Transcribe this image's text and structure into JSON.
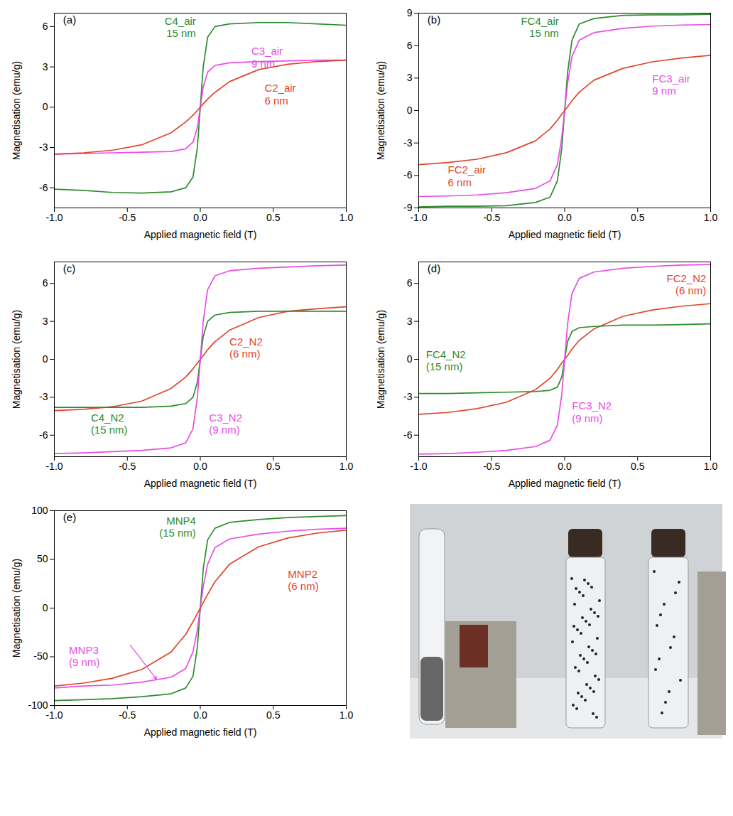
{
  "chart_data": [
    {
      "type": "line",
      "title": "(a)",
      "x_label": "Applied magnetic field (T)",
      "y_label": "Magnetisation (emu/g)",
      "x": [
        -1,
        -0.8,
        -0.6,
        -0.4,
        -0.2,
        -0.1,
        -0.05,
        -0.02,
        0,
        0.02,
        0.05,
        0.1,
        0.2,
        0.4,
        0.6,
        0.8,
        1
      ],
      "xlim": [
        -1,
        1
      ],
      "xticks": [
        {
          "value": -1,
          "label": "-1.0"
        },
        {
          "value": -0.5,
          "label": "-0.5"
        },
        {
          "value": 0,
          "label": "0.0"
        },
        {
          "value": 0.5,
          "label": "0.5"
        },
        {
          "value": 1,
          "label": "1.0"
        }
      ],
      "ylim": [
        -7.5,
        7
      ],
      "yticks": [
        -6,
        -3,
        0,
        3,
        6
      ],
      "series": [
        {
          "name": "C4_air",
          "annotation": "15 nm",
          "color": "#2e8b2e",
          "values": [
            -6.1,
            -6.2,
            -6.35,
            -6.4,
            -6.3,
            -6.0,
            -5.2,
            -3.0,
            0,
            3.0,
            5.2,
            6.0,
            6.2,
            6.3,
            6.3,
            6.2,
            6.1
          ]
        },
        {
          "name": "C3_air",
          "annotation": "9 nm",
          "color": "#e84ce8",
          "values": [
            -3.5,
            -3.45,
            -3.4,
            -3.35,
            -3.3,
            -3.1,
            -2.6,
            -1.5,
            0,
            1.5,
            2.6,
            3.1,
            3.3,
            3.4,
            3.45,
            3.5,
            3.5
          ]
        },
        {
          "name": "C2_air",
          "annotation": "6 nm",
          "color": "#e0452c",
          "values": [
            -3.5,
            -3.4,
            -3.2,
            -2.8,
            -1.9,
            -1.1,
            -0.6,
            -0.25,
            0,
            0.25,
            0.6,
            1.1,
            1.9,
            2.8,
            3.2,
            3.4,
            3.5
          ]
        }
      ]
    },
    {
      "type": "line",
      "title": "(b)",
      "x_label": "Applied magnetic field (T)",
      "y_label": "Magnetisation (emu/g)",
      "x": [
        -1,
        -0.8,
        -0.6,
        -0.4,
        -0.2,
        -0.1,
        -0.05,
        -0.02,
        0,
        0.02,
        0.05,
        0.1,
        0.2,
        0.4,
        0.6,
        0.8,
        1
      ],
      "xlim": [
        -1,
        1
      ],
      "xticks": [
        {
          "value": -1,
          "label": "-1.0"
        },
        {
          "value": -0.5,
          "label": "-0.5"
        },
        {
          "value": 0,
          "label": "0.0"
        },
        {
          "value": 0.5,
          "label": "0.5"
        },
        {
          "value": 1,
          "label": "1.0"
        }
      ],
      "ylim": [
        -9,
        9
      ],
      "yticks": [
        -9,
        -6,
        -3,
        0,
        3,
        6,
        9
      ],
      "series": [
        {
          "name": "FC4_air",
          "annotation": "15 nm",
          "color": "#2e8b2e",
          "values": [
            -8.9,
            -8.85,
            -8.85,
            -8.8,
            -8.5,
            -8.0,
            -6.5,
            -3.5,
            0,
            3.5,
            6.5,
            8.0,
            8.5,
            8.8,
            8.85,
            8.85,
            8.9
          ]
        },
        {
          "name": "FC3_air",
          "annotation": "9 nm",
          "color": "#e84ce8",
          "values": [
            -7.95,
            -7.9,
            -7.8,
            -7.6,
            -7.2,
            -6.5,
            -5.0,
            -2.5,
            0,
            2.5,
            5.0,
            6.5,
            7.2,
            7.6,
            7.8,
            7.9,
            7.95
          ]
        },
        {
          "name": "FC2_air",
          "annotation": "6 nm",
          "color": "#e0452c",
          "values": [
            -5.0,
            -4.8,
            -4.5,
            -3.9,
            -2.8,
            -1.7,
            -0.9,
            -0.35,
            0,
            0.35,
            0.9,
            1.7,
            2.8,
            3.9,
            4.5,
            4.85,
            5.1
          ]
        }
      ]
    },
    {
      "type": "line",
      "title": "(c)",
      "x_label": "Applied magnetic field (T)",
      "y_label": "Magnetisation (emu/g)",
      "x": [
        -1,
        -0.8,
        -0.6,
        -0.4,
        -0.2,
        -0.1,
        -0.05,
        -0.02,
        0,
        0.02,
        0.05,
        0.1,
        0.2,
        0.4,
        0.6,
        0.8,
        1
      ],
      "xlim": [
        -1,
        1
      ],
      "xticks": [
        {
          "value": -1,
          "label": "-1.0"
        },
        {
          "value": -0.5,
          "label": "-0.5"
        },
        {
          "value": 0,
          "label": "0.0"
        },
        {
          "value": 0.5,
          "label": "0.5"
        },
        {
          "value": 1,
          "label": "1.0"
        }
      ],
      "ylim": [
        -7.7,
        7.7
      ],
      "yticks": [
        -6,
        -3,
        0,
        3,
        6
      ],
      "series": [
        {
          "name": "C2_N2",
          "annotation": "(6 nm)",
          "color": "#e0452c",
          "values": [
            -4.05,
            -3.95,
            -3.75,
            -3.3,
            -2.3,
            -1.4,
            -0.75,
            -0.3,
            0,
            0.3,
            0.75,
            1.4,
            2.3,
            3.3,
            3.8,
            4.0,
            4.15
          ]
        },
        {
          "name": "C4_N2",
          "annotation": "(15 nm)",
          "color": "#2e8b2e",
          "values": [
            -3.8,
            -3.8,
            -3.8,
            -3.8,
            -3.7,
            -3.5,
            -3.0,
            -1.8,
            0,
            1.8,
            3.0,
            3.5,
            3.7,
            3.8,
            3.8,
            3.8,
            3.8
          ]
        },
        {
          "name": "C3_N2",
          "annotation": "(9 nm)",
          "color": "#e84ce8",
          "values": [
            -7.45,
            -7.4,
            -7.3,
            -7.2,
            -7.0,
            -6.6,
            -5.5,
            -3.0,
            0,
            3.0,
            5.5,
            6.6,
            7.0,
            7.2,
            7.3,
            7.4,
            7.45
          ]
        }
      ]
    },
    {
      "type": "line",
      "title": "(d)",
      "x_label": "Applied magnetic field (T)",
      "y_label": "Magnetisation (emu/g)",
      "x": [
        -1,
        -0.8,
        -0.6,
        -0.4,
        -0.2,
        -0.1,
        -0.05,
        -0.02,
        0,
        0.02,
        0.05,
        0.1,
        0.2,
        0.4,
        0.6,
        0.8,
        1
      ],
      "xlim": [
        -1,
        1
      ],
      "xticks": [
        {
          "value": -1,
          "label": "-1.0"
        },
        {
          "value": -0.5,
          "label": "-0.5"
        },
        {
          "value": 0,
          "label": "0.0"
        },
        {
          "value": 0.5,
          "label": "0.5"
        },
        {
          "value": 1,
          "label": "1.0"
        }
      ],
      "ylim": [
        -7.7,
        7.7
      ],
      "yticks": [
        -6,
        -3,
        0,
        3,
        6
      ],
      "series": [
        {
          "name": "FC2_N2",
          "annotation": "(6 nm)",
          "color": "#e0452c",
          "values": [
            -4.35,
            -4.2,
            -3.9,
            -3.4,
            -2.4,
            -1.5,
            -0.8,
            -0.3,
            0,
            0.3,
            0.8,
            1.5,
            2.4,
            3.4,
            3.9,
            4.2,
            4.4
          ]
        },
        {
          "name": "FC4_N2",
          "annotation": "(15 nm)",
          "color": "#2e8b2e",
          "values": [
            -2.7,
            -2.7,
            -2.65,
            -2.6,
            -2.55,
            -2.45,
            -2.2,
            -1.4,
            0,
            1.4,
            2.2,
            2.5,
            2.6,
            2.7,
            2.7,
            2.75,
            2.8
          ]
        },
        {
          "name": "FC3_N2",
          "annotation": "(9 nm)",
          "color": "#e84ce8",
          "values": [
            -7.5,
            -7.45,
            -7.35,
            -7.2,
            -6.9,
            -6.4,
            -5.2,
            -2.8,
            0,
            2.8,
            5.2,
            6.4,
            6.9,
            7.2,
            7.35,
            7.45,
            7.5
          ]
        }
      ]
    },
    {
      "type": "line",
      "title": "(e)",
      "x_label": "Applied magnetic field (T)",
      "y_label": "Magnetisation (emu/g)",
      "x": [
        -1,
        -0.8,
        -0.6,
        -0.4,
        -0.2,
        -0.1,
        -0.05,
        -0.02,
        0,
        0.02,
        0.05,
        0.1,
        0.2,
        0.4,
        0.6,
        0.8,
        1
      ],
      "xlim": [
        -1,
        1
      ],
      "xticks": [
        {
          "value": -1,
          "label": "-1.0"
        },
        {
          "value": -0.5,
          "label": "-0.5"
        },
        {
          "value": 0,
          "label": "0.0"
        },
        {
          "value": 0.5,
          "label": "0.5"
        },
        {
          "value": 1,
          "label": "1.0"
        }
      ],
      "ylim": [
        -100,
        100
      ],
      "yticks": [
        -100,
        -50,
        0,
        50,
        100
      ],
      "series": [
        {
          "name": "MNP4",
          "annotation": "(15 nm)",
          "color": "#2e8b2e",
          "values": [
            -95,
            -94,
            -93,
            -91,
            -88,
            -82,
            -70,
            -40,
            0,
            40,
            70,
            82,
            88,
            91,
            93,
            94,
            95
          ]
        },
        {
          "name": "MNP3",
          "annotation": "(9 nm)",
          "color": "#e84ce8",
          "values": [
            -82,
            -80,
            -79,
            -76,
            -71,
            -62,
            -45,
            -22,
            0,
            22,
            45,
            62,
            71,
            76,
            79,
            81,
            82
          ]
        },
        {
          "name": "MNP2",
          "annotation": "(6 nm)",
          "color": "#e0452c",
          "values": [
            -80,
            -77,
            -72,
            -63,
            -45,
            -27,
            -14,
            -5.5,
            0,
            5.5,
            14,
            27,
            45,
            63,
            72,
            77,
            80
          ]
        }
      ]
    }
  ]
}
